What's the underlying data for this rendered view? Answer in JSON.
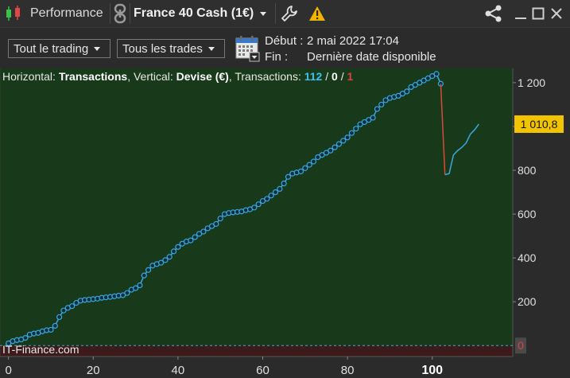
{
  "window": {
    "title": "Performance",
    "instrument": "France 40 Cash (1€)",
    "icons": [
      "candlestick-icon",
      "link-icon",
      "wrench-icon",
      "warning-icon",
      "share-icon",
      "minimize-icon",
      "maximize-icon",
      "close-icon"
    ]
  },
  "toolbar": {
    "filter_trading": "Tout le trading",
    "filter_trades": "Tous les trades",
    "start_label": "Début :",
    "start_value": "2 mai 2022 17:04",
    "end_label": "Fin :",
    "end_value": "Dernière date disponible"
  },
  "info": {
    "horizontal_label": "Horizontal: ",
    "horizontal_value": "Transactions",
    "vertical_label": ", Vertical: ",
    "vertical_value": "Devise (€)",
    "transactions_label": ", Transactions: ",
    "count_total": "112",
    "sep1": " / ",
    "count_zero": "0",
    "sep2": " / ",
    "count_loss": "1"
  },
  "watermark": "IT-Finance.com",
  "colors": {
    "positive_zone": "#183a1b",
    "negative_zone": "#3d1b1b",
    "line": "#39a7e0",
    "drop_line": "#d94a3a",
    "count_total": "#3cc0f0",
    "count_loss": "#e04040",
    "current_badge": "#f2c400"
  },
  "chart_data": {
    "type": "line",
    "title": "",
    "xlabel": "",
    "ylabel": "",
    "xlim": [
      -2,
      119
    ],
    "ylim": [
      -50,
      1265
    ],
    "x_ticks": [
      0,
      20,
      40,
      60,
      80,
      100
    ],
    "y_ticks": [
      200,
      400,
      600,
      800,
      1000,
      1200
    ],
    "y_tick_labels": [
      "200",
      "400",
      "600",
      "800",
      "",
      "1 200"
    ],
    "zero_label": "0",
    "current_value": 1010.8,
    "current_label": "1 010,8",
    "x_highlight": 100,
    "series": [
      {
        "markers": true,
        "x": [
          0,
          1,
          2,
          3,
          4,
          5,
          6,
          7,
          8,
          9,
          10,
          11,
          12,
          13,
          14,
          15,
          16,
          17,
          18,
          19,
          20,
          21,
          22,
          23,
          24,
          25,
          26,
          27,
          28,
          29,
          30,
          31,
          32,
          33,
          34,
          35,
          36,
          37,
          38,
          39,
          40,
          41,
          42,
          43,
          44,
          45,
          46,
          47,
          48,
          49,
          50,
          51,
          52,
          53,
          54,
          55,
          56,
          57,
          58,
          59,
          60,
          61,
          62,
          63,
          64,
          65,
          66,
          67,
          68,
          69,
          70,
          71,
          72,
          73,
          74,
          75,
          76,
          77,
          78,
          79,
          80,
          81,
          82,
          83,
          84,
          85,
          86,
          87,
          88,
          89,
          90,
          91,
          92,
          93,
          94,
          95,
          96,
          97,
          98,
          99,
          100,
          101,
          102
        ],
        "y": [
          10,
          20,
          25,
          28,
          35,
          50,
          55,
          58,
          65,
          70,
          72,
          90,
          130,
          160,
          172,
          180,
          195,
          205,
          208,
          210,
          212,
          214,
          218,
          220,
          222,
          225,
          228,
          230,
          240,
          255,
          262,
          275,
          320,
          345,
          365,
          372,
          378,
          390,
          405,
          430,
          450,
          465,
          475,
          480,
          495,
          510,
          520,
          535,
          545,
          555,
          580,
          600,
          605,
          608,
          610,
          612,
          618,
          622,
          630,
          645,
          660,
          670,
          685,
          700,
          715,
          740,
          770,
          785,
          790,
          795,
          810,
          825,
          840,
          860,
          870,
          880,
          890,
          905,
          920,
          935,
          950,
          970,
          990,
          1010,
          1020,
          1030,
          1040,
          1080,
          1100,
          1120,
          1130,
          1135,
          1140,
          1150,
          1160,
          1180,
          1190,
          1200,
          1210,
          1220,
          1230,
          1240,
          1195
        ]
      },
      {
        "markers": false,
        "x": [
          102,
          103,
          104,
          105,
          106,
          107,
          108,
          109,
          110,
          111
        ],
        "y": [
          1195,
          780,
          785,
          870,
          890,
          905,
          925,
          965,
          985,
          1010.8
        ]
      }
    ]
  }
}
